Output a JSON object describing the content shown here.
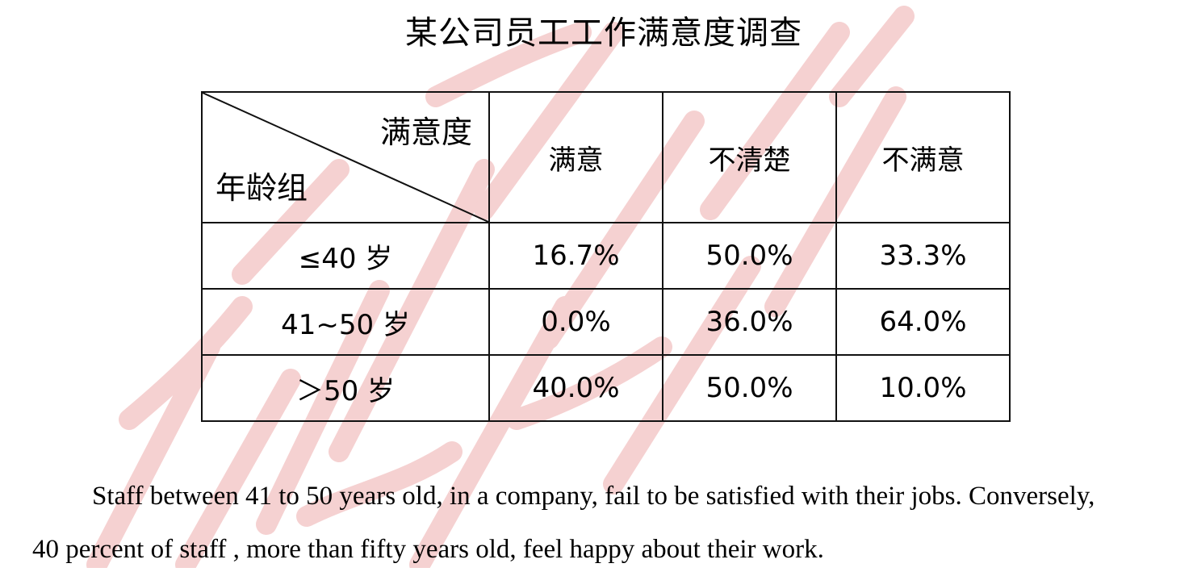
{
  "title": "某公司员工工作满意度调查",
  "table": {
    "corner_top": "满意度",
    "corner_bottom": "年龄组",
    "columns": [
      "满意",
      "不清楚",
      "不满意"
    ],
    "rows": [
      {
        "age": "≤40 岁",
        "values": [
          "16.7%",
          "50.0%",
          "33.3%"
        ]
      },
      {
        "age": "41~50 岁",
        "values": [
          "0.0%",
          "36.0%",
          "64.0%"
        ]
      },
      {
        "age": "＞50 岁",
        "values": [
          "40.0%",
          "50.0%",
          "10.0%"
        ]
      }
    ]
  },
  "paragraph": {
    "line1": "Staff between 41 to 50 years old, in a company, fail to be satisfied with their jobs. Conversely,",
    "line2": "40 percent of staff , more than fifty years old, feel happy about their work."
  },
  "watermark_color": "#f3c6c6"
}
